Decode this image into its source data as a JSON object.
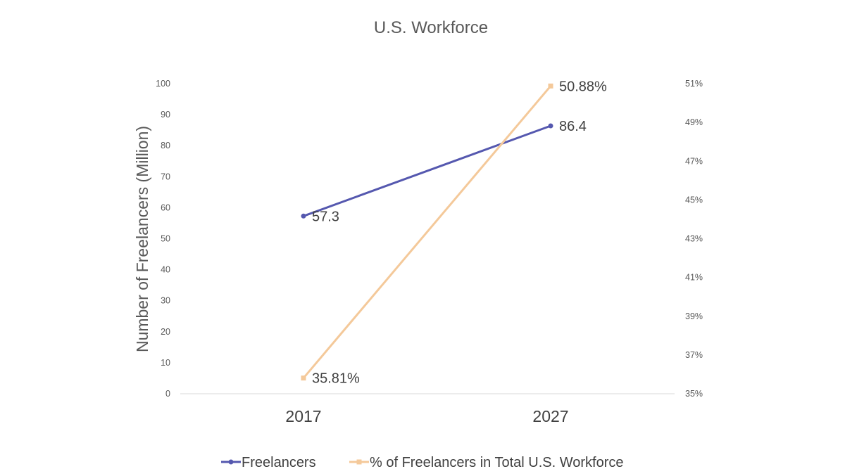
{
  "chart_data": {
    "type": "line",
    "title": "U.S. Workforce",
    "ylabel": "Number of Freelancers (Million)",
    "categories": [
      "2017",
      "2027"
    ],
    "ylim": [
      0,
      100
    ],
    "yticks": [
      "0",
      "10",
      "20",
      "30",
      "40",
      "50",
      "60",
      "70",
      "80",
      "90",
      "100"
    ],
    "y2lim": [
      35,
      51
    ],
    "y2ticks": [
      "35%",
      "37%",
      "39%",
      "41%",
      "43%",
      "45%",
      "47%",
      "49%",
      "51%"
    ],
    "series": [
      {
        "name": "Freelancers",
        "axis": "left",
        "values": [
          57.3,
          86.4
        ],
        "labels": [
          "57.3",
          "86.4"
        ],
        "color": "#5558AF",
        "marker": "circle"
      },
      {
        "name": "% of Freelancers in Total U.S. Workforce",
        "axis": "right",
        "values": [
          35.81,
          50.88
        ],
        "labels": [
          "35.81%",
          "50.88%"
        ],
        "color": "#F4C99A",
        "marker": "square"
      }
    ],
    "grid": false,
    "legend_position": "bottom"
  }
}
